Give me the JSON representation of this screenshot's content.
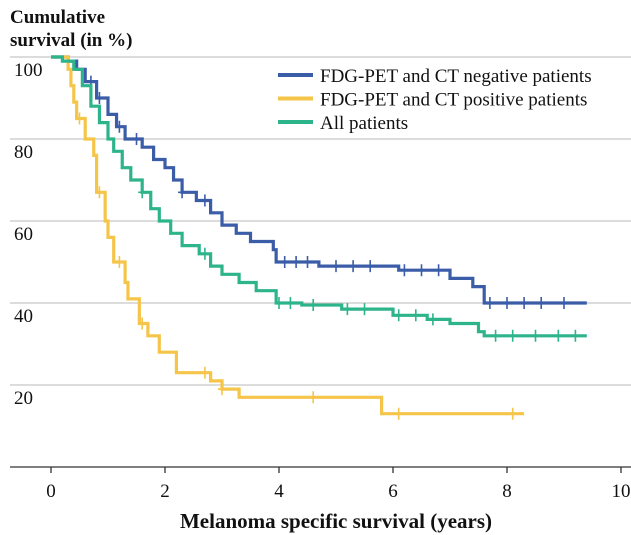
{
  "chart_data": {
    "type": "step",
    "ylabel": [
      "Cumulative",
      "survival (in %)"
    ],
    "xlabel": "Melanoma specific survival (years)",
    "xlim": [
      0,
      10
    ],
    "xticks": [
      0,
      2,
      4,
      6,
      8,
      10
    ],
    "ylim": [
      0,
      100
    ],
    "yticks": [
      20,
      40,
      60,
      80,
      100
    ],
    "grid": true,
    "legend": "upper right",
    "series": [
      {
        "name": "FDG-PET and CT negative patients",
        "color": "#3b5da8",
        "x": [
          0,
          0.3,
          0.45,
          0.6,
          0.8,
          1.0,
          1.15,
          1.3,
          1.6,
          1.8,
          2.0,
          2.15,
          2.3,
          2.55,
          2.8,
          3.0,
          3.25,
          3.5,
          3.9,
          3.95,
          4.7,
          6.1,
          7.0,
          7.4,
          7.6,
          9.4
        ],
        "values": [
          100,
          99,
          97,
          94,
          90,
          86,
          83,
          80,
          78,
          75,
          73,
          70,
          67,
          65,
          62,
          59,
          57,
          55,
          53,
          50,
          49,
          48,
          46,
          44,
          40,
          40
        ],
        "censored_x": [
          0.7,
          0.85,
          1.2,
          1.5,
          2.3,
          2.7,
          4.1,
          4.3,
          4.5,
          5.0,
          5.3,
          5.6,
          6.2,
          6.5,
          6.8,
          7.7,
          8.0,
          8.3,
          8.6,
          9.0
        ],
        "censored_values": [
          94,
          90,
          83,
          80,
          67,
          65,
          50,
          50,
          50,
          49,
          49,
          49,
          48,
          48,
          48,
          40,
          40,
          40,
          40,
          40
        ]
      },
      {
        "name": "FDG-PET and CT positive patients",
        "color": "#f5c54a",
        "x": [
          0,
          0.3,
          0.35,
          0.4,
          0.45,
          0.6,
          0.75,
          0.8,
          0.95,
          1.0,
          1.1,
          1.3,
          1.35,
          1.55,
          1.7,
          1.9,
          2.2,
          2.8,
          3.0,
          3.3,
          5.8,
          8.3
        ],
        "values": [
          100,
          97,
          93,
          89,
          85,
          80,
          76,
          67,
          60,
          56,
          50,
          45,
          41,
          35,
          32,
          28,
          23,
          21,
          19,
          17,
          13,
          13
        ],
        "censored_x": [
          0.5,
          0.85,
          1.2,
          1.6,
          2.7,
          3.0,
          4.6,
          6.1,
          8.1
        ],
        "censored_values": [
          85,
          67,
          50,
          35,
          23,
          19,
          17,
          13,
          13
        ]
      },
      {
        "name": "All patients",
        "color": "#2db48a",
        "x": [
          0,
          0.2,
          0.4,
          0.55,
          0.7,
          0.85,
          1.0,
          1.1,
          1.25,
          1.4,
          1.6,
          1.75,
          1.9,
          2.1,
          2.3,
          2.6,
          2.8,
          3.0,
          3.3,
          3.6,
          3.95,
          4.4,
          5.1,
          6.0,
          6.6,
          7.0,
          7.5,
          7.6,
          9.4
        ],
        "values": [
          100,
          99,
          97,
          93,
          88,
          84,
          80,
          77,
          73,
          70,
          67,
          63,
          60,
          57,
          54,
          52,
          49,
          47,
          45,
          43,
          40,
          39.5,
          38.5,
          37,
          36,
          35,
          33,
          32,
          32
        ],
        "censored_x": [
          1.6,
          2.7,
          4.0,
          4.2,
          4.6,
          5.2,
          5.5,
          6.1,
          6.4,
          6.7,
          7.8,
          8.1,
          8.5,
          8.9,
          9.2
        ],
        "censored_values": [
          67,
          52,
          40,
          40,
          39.5,
          38.5,
          38.5,
          37,
          37,
          36,
          32,
          32,
          32,
          32,
          32
        ]
      }
    ]
  }
}
